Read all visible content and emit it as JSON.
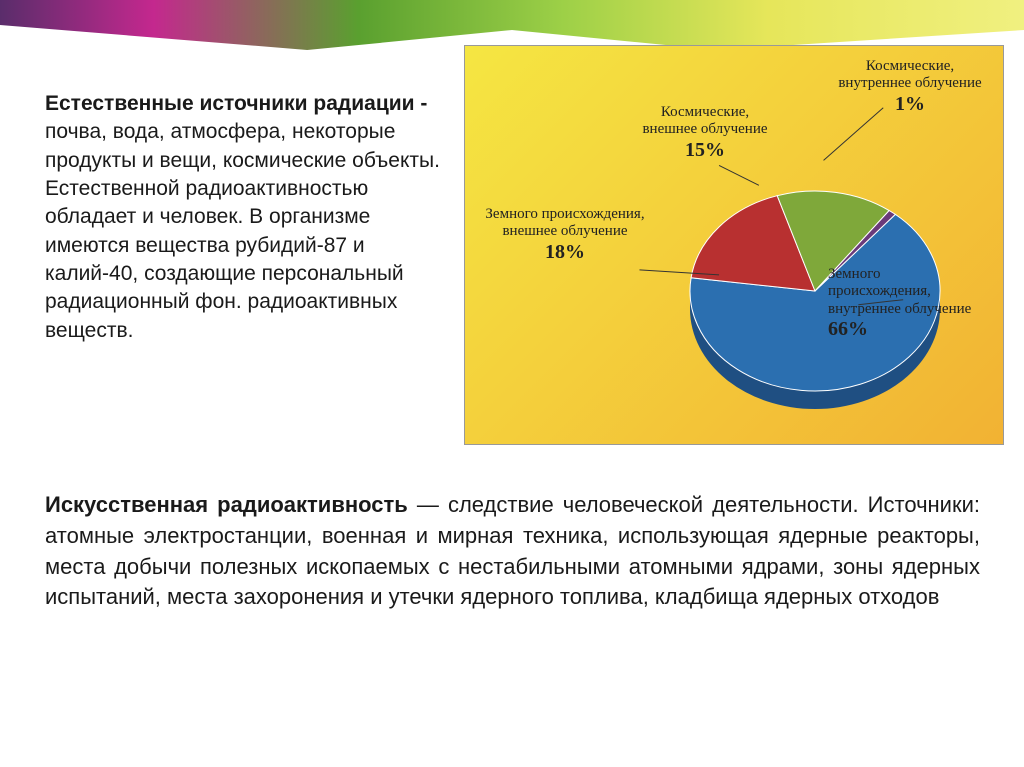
{
  "gradient": {
    "colors": [
      "#5a2d6b",
      "#c4288e",
      "#5aa02f",
      "#9dd047",
      "#e6e65a",
      "#f0f080"
    ]
  },
  "text1": {
    "bold": "Естественные источники радиации - ",
    "rest": "почва, вода, атмосфера, некоторые продукты и вещи, космические объекты. Естественной радиоактивностью обладает и человек. В организме имеются вещества рубидий-87 и калий-40, создающие персональный радиационный фон. радиоактивных веществ.",
    "fontsize": 21
  },
  "text2": {
    "bold": "Искусственная радиоактивность",
    "rest": " — следствие человеческой деятельности. Источники: атомные электростанции, военная и мирная техника, использующая ядерные реакторы, места добычи полезных ископаемых с нестабильными атомными ядрами, зоны ядерных испытаний, места захоронения и утечки ядерного топлива, кладбища ядерных отходов",
    "fontsize": 22
  },
  "chart": {
    "type": "pie",
    "background_gradient": [
      "#f5e642",
      "#f2b233"
    ],
    "diameter": 260,
    "tilt_3d": true,
    "slices": [
      {
        "label": "Земного происхождения, внутреннее облучение",
        "value": 66,
        "color": "#2b6fb0",
        "color_dark": "#1f4f82"
      },
      {
        "label": "Земного происхождения, внешнее облучение",
        "value": 18,
        "color": "#b83030",
        "color_dark": "#8a2424"
      },
      {
        "label": "Космические, внешнее облучение",
        "value": 15,
        "color": "#7fa83a",
        "color_dark": "#5a7a28"
      },
      {
        "label": "Космические, внутреннее облучение",
        "value": 1,
        "color": "#6a3a7a",
        "color_dark": "#4a2656"
      }
    ],
    "label_font": "Times New Roman",
    "label_fontsize": 15,
    "pct_fontsize": 20,
    "pct_suffix": "%",
    "leader_color": "#333333"
  }
}
